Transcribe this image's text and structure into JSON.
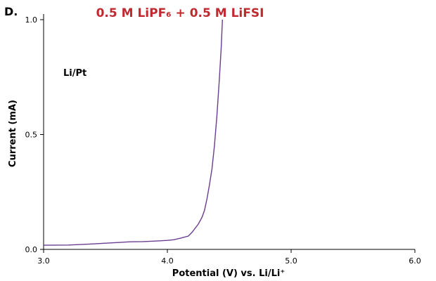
{
  "panel_label": "D.",
  "chart_data": {
    "type": "line",
    "title": "0.5 M LiPF₆ + 0.5 M LiFSI",
    "title_color": "#c0292f",
    "annotation": "Li/Pt",
    "xlabel": "Potential (V) vs. Li/Li⁺",
    "ylabel": "Current (mA)",
    "xlim": [
      3.0,
      6.0
    ],
    "ylim": [
      0.0,
      1.0
    ],
    "x_ticks": [
      "3.0",
      "4.0",
      "5.0",
      "6.0"
    ],
    "y_ticks": [
      "0.0",
      "0.5",
      "1.0"
    ],
    "grid": false,
    "series": [
      {
        "color": "#6a3d8f",
        "points": [
          [
            3.0,
            0.018
          ],
          [
            3.2,
            0.019
          ],
          [
            3.4,
            0.024
          ],
          [
            3.6,
            0.03
          ],
          [
            3.7,
            0.033
          ],
          [
            3.8,
            0.034
          ],
          [
            3.9,
            0.036
          ],
          [
            4.0,
            0.039
          ],
          [
            4.05,
            0.042
          ],
          [
            4.1,
            0.048
          ],
          [
            4.17,
            0.058
          ],
          [
            4.2,
            0.075
          ],
          [
            4.25,
            0.11
          ],
          [
            4.28,
            0.14
          ],
          [
            4.3,
            0.17
          ],
          [
            4.32,
            0.22
          ],
          [
            4.34,
            0.28
          ],
          [
            4.36,
            0.35
          ],
          [
            4.38,
            0.45
          ],
          [
            4.4,
            0.58
          ],
          [
            4.42,
            0.74
          ],
          [
            4.435,
            0.88
          ],
          [
            4.445,
            1.0
          ]
        ]
      }
    ]
  }
}
